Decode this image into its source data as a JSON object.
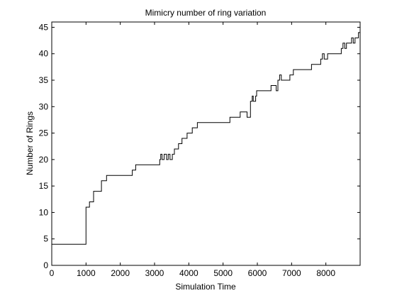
{
  "chart_data": {
    "type": "line",
    "title": "Mimicry number of ring variation",
    "xlabel": "Simulation Time",
    "ylabel": "Number of Rings",
    "xlim": [
      0,
      9000
    ],
    "ylim": [
      0,
      46
    ],
    "xticks": [
      0,
      1000,
      2000,
      3000,
      4000,
      5000,
      6000,
      7000,
      8000
    ],
    "yticks": [
      0,
      5,
      10,
      15,
      20,
      25,
      30,
      35,
      40,
      45
    ],
    "grid": false,
    "line_color": "#000000",
    "series": [
      {
        "step": true,
        "x": [
          0,
          1000,
          1030,
          1100,
          1160,
          1220,
          1450,
          1600,
          2350,
          2450,
          3150,
          3180,
          3220,
          3280,
          3300,
          3350,
          3400,
          3450,
          3480,
          3520,
          3580,
          3700,
          3800,
          3950,
          4050,
          4100,
          4180,
          4250,
          4350,
          4550,
          5200,
          5500,
          5700,
          5800,
          5850,
          5880,
          5950,
          5980,
          6000,
          6050,
          6100,
          6400,
          6500,
          6550,
          6600,
          6650,
          6700,
          6750,
          6950,
          7050,
          7550,
          7580,
          7650,
          7850,
          7900,
          7950,
          8000,
          8050,
          8200,
          8450,
          8500,
          8550,
          8600,
          8700,
          8750,
          8800,
          8850,
          8900,
          8950,
          9000
        ],
        "y": [
          4,
          11,
          11,
          12,
          12,
          14,
          16,
          17,
          18,
          19,
          20,
          21,
          20,
          21,
          21,
          20,
          21,
          20,
          20,
          21,
          22,
          23,
          24,
          25,
          25,
          26,
          26,
          27,
          27,
          27,
          28,
          29,
          28,
          31,
          32,
          31,
          32,
          33,
          33,
          33,
          33,
          34,
          34,
          33,
          35,
          36,
          35,
          35,
          36,
          37,
          37,
          38,
          38,
          39,
          40,
          39,
          39,
          40,
          40,
          41,
          42,
          41,
          42,
          42,
          43,
          42,
          43,
          43,
          44,
          44
        ]
      }
    ]
  }
}
